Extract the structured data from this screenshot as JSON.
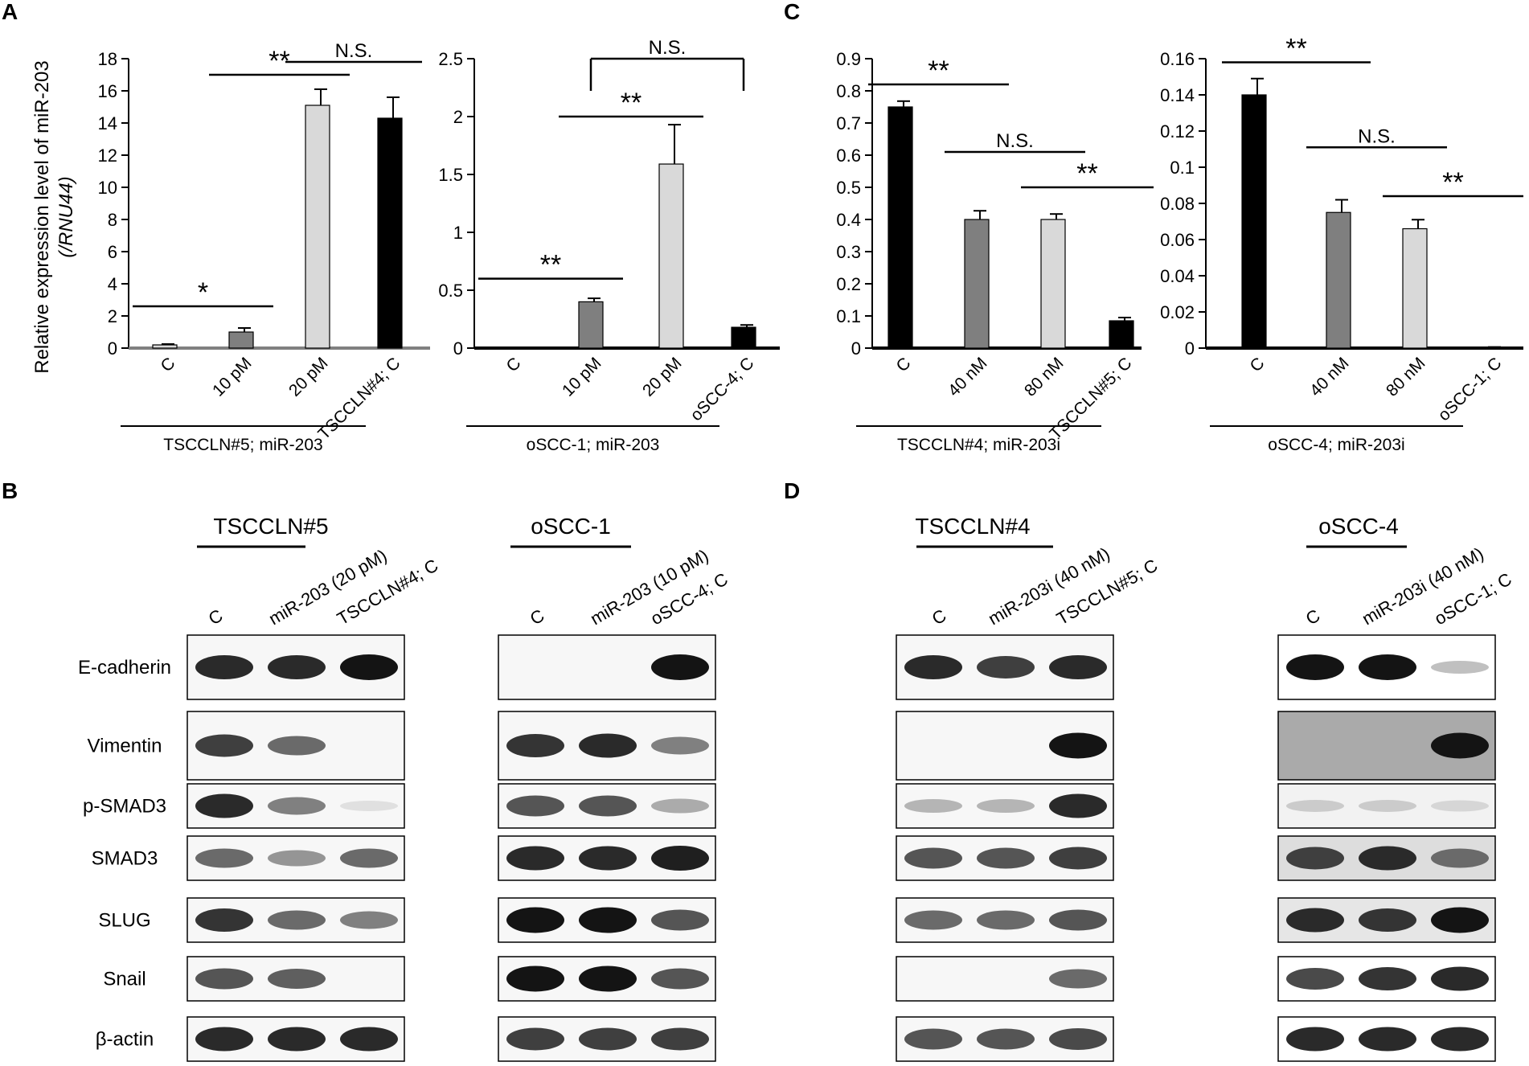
{
  "panels": {
    "A": "A",
    "B": "B",
    "C": "C",
    "D": "D"
  },
  "colors": {
    "black": "#000000",
    "dark_gray": "#7f7f7f",
    "light_gray": "#d9d9d9",
    "axis_gray": "#808080"
  },
  "chart_data": [
    {
      "id": "A1",
      "type": "bar",
      "ylabel_line1": "Relative expression level of miR-203",
      "ylabel_line2": "(/RNU44)",
      "ylim": [
        0,
        18
      ],
      "yticks": [
        "0",
        "2",
        "4",
        "6",
        "8",
        "10",
        "12",
        "14",
        "16",
        "18"
      ],
      "categories": [
        "C",
        "10 pM",
        "20 pM",
        "TSCCLN#4; C"
      ],
      "values": [
        0.2,
        1.0,
        15.1,
        14.3
      ],
      "errors": [
        0.05,
        0.25,
        1.0,
        1.3
      ],
      "fills": [
        "#d9d9d9",
        "#7f7f7f",
        "#d9d9d9",
        "#000000"
      ],
      "group_label": "TSCCLN#5; miR-203",
      "group_span": 3,
      "significance": [
        {
          "from": 0,
          "to": 1,
          "y": 2.6,
          "label": "*"
        },
        {
          "from": 1,
          "to": 2,
          "y": 17.0,
          "label": "**"
        },
        {
          "from": 2,
          "to": 3,
          "y": 17.8,
          "label": "N.S."
        }
      ]
    },
    {
      "id": "A2",
      "type": "bar",
      "ylim": [
        0,
        2.5
      ],
      "yticks": [
        "0",
        "0.5",
        "1",
        "1.5",
        "2",
        "2.5"
      ],
      "categories": [
        "C",
        "10 pM",
        "20 pM",
        "oSCC-4; C"
      ],
      "values": [
        0.0,
        0.4,
        1.59,
        0.18
      ],
      "errors": [
        0,
        0.03,
        0.34,
        0.02
      ],
      "fills": [
        "#d9d9d9",
        "#7f7f7f",
        "#d9d9d9",
        "#000000"
      ],
      "group_label": "oSCC-1; miR-203",
      "group_span": 3,
      "significance": [
        {
          "from": 0,
          "to": 1,
          "y": 0.6,
          "label": "**"
        },
        {
          "from": 1,
          "to": 2,
          "y": 2.0,
          "label": "**"
        },
        {
          "from": 1,
          "to": 3,
          "y": 2.5,
          "label": "N.S.",
          "bracket": true
        }
      ]
    },
    {
      "id": "C1",
      "type": "bar",
      "ylim": [
        0,
        0.9
      ],
      "yticks": [
        "0",
        "0.1",
        "0.2",
        "0.3",
        "0.4",
        "0.5",
        "0.6",
        "0.7",
        "0.8",
        "0.9"
      ],
      "categories": [
        "C",
        "40 nM",
        "80 nM",
        "TSCCLN#5; C"
      ],
      "values": [
        0.75,
        0.4,
        0.4,
        0.085
      ],
      "errors": [
        0.018,
        0.027,
        0.017,
        0.01
      ],
      "fills": [
        "#000000",
        "#7f7f7f",
        "#d9d9d9",
        "#000000"
      ],
      "group_label": "TSCCLN#4; miR-203i",
      "group_span": 3,
      "significance": [
        {
          "from": 0,
          "to": 1,
          "y": 0.82,
          "label": "**"
        },
        {
          "from": 1,
          "to": 2,
          "y": 0.61,
          "label": "N.S."
        },
        {
          "from": 2,
          "to": 3,
          "y": 0.5,
          "label": "**"
        }
      ]
    },
    {
      "id": "C2",
      "type": "bar",
      "ylim": [
        0,
        0.16
      ],
      "yticks": [
        "0",
        "0.02",
        "0.04",
        "0.06",
        "0.08",
        "0.1",
        "0.12",
        "0.14",
        "0.16"
      ],
      "categories": [
        "C",
        "40 nM",
        "80 nM",
        "oSCC-1; C"
      ],
      "values": [
        0.14,
        0.075,
        0.066,
        0.0005
      ],
      "errors": [
        0.009,
        0.007,
        0.005,
        0.0001
      ],
      "fills": [
        "#000000",
        "#7f7f7f",
        "#d9d9d9",
        "#000000"
      ],
      "group_label": "oSCC-4; miR-203i",
      "group_span": 3,
      "significance": [
        {
          "from": 0,
          "to": 1,
          "y": 0.158,
          "label": "**"
        },
        {
          "from": 1,
          "to": 2,
          "y": 0.111,
          "label": "N.S."
        },
        {
          "from": 2,
          "to": 3,
          "y": 0.084,
          "label": "**"
        }
      ]
    }
  ],
  "western_blots": [
    {
      "id": "B1",
      "title": "TSCCLN#5",
      "lanes": [
        "C",
        "miR-203 (20 pM)",
        "TSCCLN#4; C"
      ],
      "show_row_labels": true
    },
    {
      "id": "B2",
      "title": "oSCC-1",
      "lanes": [
        "C",
        "miR-203 (10 pM)",
        "oSCC-4; C"
      ],
      "show_row_labels": false
    },
    {
      "id": "D1",
      "title": "TSCCLN#4",
      "lanes": [
        "C",
        "miR-203i (40 nM)",
        "TSCCLN#5; C"
      ],
      "show_row_labels": false
    },
    {
      "id": "D2",
      "title": "oSCC-4",
      "lanes": [
        "C",
        "miR-203i (40 nM)",
        "oSCC-1; C"
      ],
      "show_row_labels": false
    }
  ],
  "blot_rows": [
    "E-cadherin",
    "Vimentin",
    "p-SMAD3",
    "SMAD3",
    "SLUG",
    "Snail",
    "β-actin"
  ]
}
